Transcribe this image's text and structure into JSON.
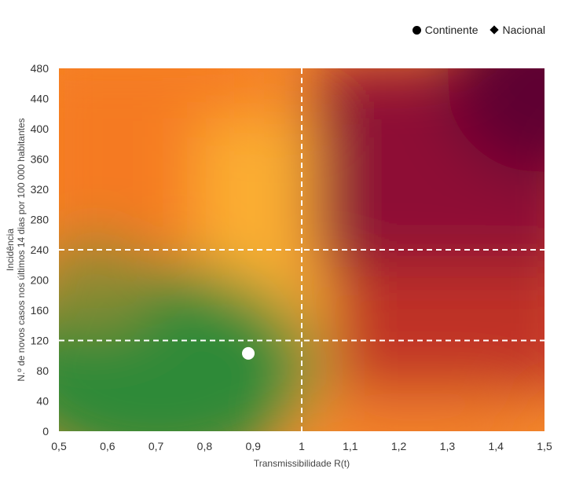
{
  "legend": {
    "continente": "Continente",
    "nacional": "Nacional"
  },
  "chart_data": {
    "type": "scatter",
    "title": "",
    "xlabel": "Transmissibilidade R(t)",
    "ylabel_line1": "Incidência",
    "ylabel_line2": "N.º de novos casos nos últimos 14 dias por 100 000 habitantes",
    "xlim": [
      0.5,
      1.5
    ],
    "ylim": [
      0,
      480
    ],
    "x_ticks": [
      "0,5",
      "0,6",
      "0,7",
      "0,8",
      "0,9",
      "1",
      "1,1",
      "1,2",
      "1,3",
      "1,4",
      "1,5"
    ],
    "y_ticks": [
      "0",
      "40",
      "80",
      "120",
      "160",
      "200",
      "240",
      "280",
      "320",
      "360",
      "400",
      "440",
      "480"
    ],
    "reference_lines": {
      "vertical_x": [
        1.0
      ],
      "horizontal_y": [
        120,
        240
      ]
    },
    "background": "risk-matrix heat gradient (green low R/low incidence, orange mid, dark red high)",
    "series": [
      {
        "name": "Continente",
        "marker": "circle",
        "points": [
          {
            "x": 0.89,
            "y": 103
          }
        ]
      },
      {
        "name": "Nacional",
        "marker": "diamond",
        "points": []
      }
    ],
    "colors": {
      "green": "#2a8a3a",
      "amber": "#fbae33",
      "orange": "#f57a22",
      "red": "#c83228",
      "dark_red": "#5e0030",
      "marker": "#ffffff",
      "reference_line": "#ffffff"
    }
  }
}
